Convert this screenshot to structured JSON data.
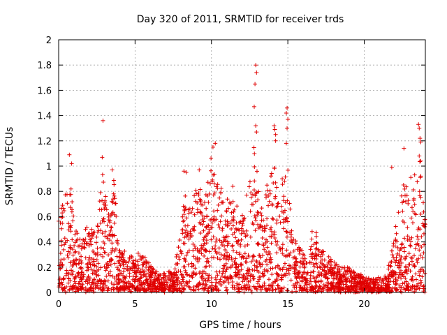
{
  "chart_data": {
    "type": "scatter",
    "title": "Day 320 of 2011, SRMTID for receiver trds",
    "xlabel": "GPS time / hours",
    "ylabel": "SRMTID / TECUs",
    "xlim": [
      0,
      24
    ],
    "ylim": [
      0,
      2
    ],
    "xticks": [
      "0",
      "5",
      "10",
      "15",
      "20"
    ],
    "xtick_values": [
      0,
      5,
      10,
      15,
      20
    ],
    "yticks": [
      "0",
      "0.2",
      "0.4",
      "0.6",
      "0.8",
      "1",
      "1.2",
      "1.4",
      "1.6",
      "1.8",
      "2"
    ],
    "ytick_values": [
      0,
      0.2,
      0.4,
      0.6,
      0.8,
      1.0,
      1.2,
      1.4,
      1.6,
      1.8,
      2.0
    ],
    "grid": true,
    "marker": "+",
    "color": "#e00000",
    "series": [
      {
        "name": "SRMTID",
        "envelope": {
          "x": [
            0.0,
            0.5,
            0.7,
            1.0,
            1.5,
            2.0,
            2.5,
            2.9,
            3.2,
            3.6,
            4.0,
            4.5,
            5.0,
            5.5,
            6.0,
            6.5,
            7.0,
            7.5,
            7.9,
            8.3,
            8.7,
            9.1,
            9.5,
            10.0,
            10.3,
            10.8,
            11.3,
            11.8,
            12.3,
            12.8,
            13.2,
            13.6,
            14.0,
            14.4,
            14.9,
            15.3,
            15.7,
            16.2,
            16.7,
            17.0,
            17.5,
            18.0,
            18.5,
            19.0,
            19.5,
            20.0,
            20.5,
            21.0,
            21.5,
            22.0,
            22.5,
            22.9,
            23.3,
            23.7,
            24.0
          ],
          "y": [
            0.6,
            0.85,
            1.05,
            0.55,
            0.4,
            0.6,
            0.5,
            1.1,
            0.6,
            0.95,
            0.35,
            0.3,
            0.3,
            0.3,
            0.2,
            0.15,
            0.15,
            0.15,
            0.4,
            0.9,
            0.7,
            0.95,
            0.7,
            1.15,
            0.9,
            0.85,
            0.75,
            0.7,
            0.65,
            1.3,
            0.9,
            0.85,
            1.2,
            0.8,
            1.2,
            0.5,
            0.4,
            0.3,
            0.6,
            0.45,
            0.3,
            0.25,
            0.2,
            0.18,
            0.15,
            0.12,
            0.1,
            0.1,
            0.12,
            0.5,
            0.9,
            1.0,
            0.8,
            1.15,
            0.7
          ]
        },
        "peaks": [
          [
            0.7,
            1.09
          ],
          [
            0.85,
            1.02
          ],
          [
            2.9,
            1.36
          ],
          [
            2.85,
            1.07
          ],
          [
            3.5,
            0.97
          ],
          [
            10.25,
            1.18
          ],
          [
            10.1,
            1.15
          ],
          [
            12.9,
            1.8
          ],
          [
            12.95,
            1.74
          ],
          [
            12.85,
            1.65
          ],
          [
            12.8,
            1.47
          ],
          [
            12.9,
            1.32
          ],
          [
            12.95,
            1.27
          ],
          [
            14.1,
            1.32
          ],
          [
            14.15,
            1.29
          ],
          [
            14.2,
            1.25
          ],
          [
            14.2,
            1.2
          ],
          [
            14.95,
            1.46
          ],
          [
            14.9,
            1.42
          ],
          [
            15.0,
            1.37
          ],
          [
            14.95,
            1.3
          ],
          [
            14.9,
            1.18
          ],
          [
            22.6,
            1.14
          ],
          [
            23.55,
            1.33
          ],
          [
            23.6,
            1.3
          ],
          [
            23.65,
            1.22
          ],
          [
            23.7,
            1.19
          ],
          [
            23.6,
            1.08
          ],
          [
            23.7,
            1.04
          ],
          [
            21.8,
            0.99
          ],
          [
            9.2,
            0.97
          ],
          [
            8.2,
            0.96
          ],
          [
            8.35,
            0.95
          ],
          [
            23.3,
            0.93
          ],
          [
            23.05,
            0.91
          ],
          [
            12.3,
            0.77
          ],
          [
            11.4,
            0.84
          ]
        ],
        "point_count": 2600
      }
    ]
  }
}
